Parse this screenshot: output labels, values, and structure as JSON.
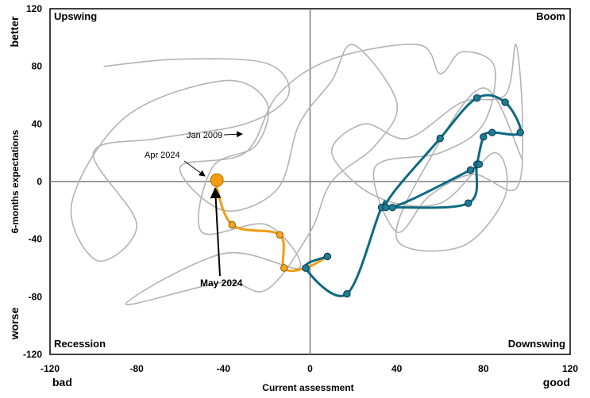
{
  "chart_data": {
    "type": "line",
    "xlabel": "Current assessment",
    "ylabel": "6-months expectations",
    "xlim": [
      -120,
      120
    ],
    "ylim": [
      -120,
      120
    ],
    "x_ticks": [
      -120,
      -80,
      -40,
      0,
      40,
      80,
      120
    ],
    "y_ticks": [
      -120,
      -80,
      -40,
      0,
      40,
      80,
      120
    ],
    "x_end_labels": {
      "left": "bad",
      "right": "good"
    },
    "y_end_labels": {
      "bottom": "worse",
      "top": "better"
    },
    "grid": false,
    "quadrant_labels": {
      "top_left": "Upswing",
      "top_right": "Boom",
      "bottom_left": "Recession",
      "bottom_right": "Downswing"
    },
    "annotations": [
      {
        "text": "Jan 2009",
        "x": -27,
        "y": 32
      },
      {
        "text": "Apr 2024",
        "x": -46,
        "y": 1
      },
      {
        "text": "May 2024",
        "x": -43,
        "y": 1
      }
    ],
    "series": [
      {
        "color": "#b3b3b3",
        "style": "history",
        "points": [
          [
            -95,
            80
          ],
          [
            -60,
            85
          ],
          [
            -20,
            82
          ],
          [
            -10,
            60
          ],
          [
            -30,
            40
          ],
          [
            -70,
            30
          ],
          [
            -100,
            20
          ],
          [
            -80,
            -30
          ],
          [
            -98,
            -55
          ],
          [
            -110,
            -15
          ],
          [
            -85,
            45
          ],
          [
            -40,
            70
          ],
          [
            -20,
            55
          ],
          [
            -25,
            25
          ],
          [
            -45,
            10
          ],
          [
            -50,
            -35
          ],
          [
            -20,
            -30
          ],
          [
            -5,
            -60
          ],
          [
            -40,
            -50
          ],
          [
            -85,
            -85
          ],
          [
            -40,
            -70
          ],
          [
            -20,
            -75
          ],
          [
            0,
            -35
          ],
          [
            10,
            0
          ],
          [
            30,
            25
          ],
          [
            40,
            55
          ],
          [
            20,
            95
          ],
          [
            10,
            70
          ],
          [
            -5,
            40
          ],
          [
            -15,
            -5
          ],
          [
            -40,
            -20
          ],
          [
            -60,
            10
          ],
          [
            -30,
            20
          ],
          [
            -15,
            60
          ],
          [
            10,
            85
          ],
          [
            50,
            95
          ],
          [
            60,
            75
          ],
          [
            70,
            90
          ],
          [
            85,
            80
          ],
          [
            80,
            40
          ],
          [
            60,
            20
          ],
          [
            30,
            10
          ],
          [
            40,
            -35
          ],
          [
            55,
            -10
          ],
          [
            75,
            5
          ],
          [
            95,
            -5
          ],
          [
            98,
            40
          ],
          [
            95,
            95
          ],
          [
            90,
            60
          ],
          [
            70,
            55
          ],
          [
            45,
            30
          ],
          [
            25,
            40
          ],
          [
            10,
            20
          ],
          [
            30,
            -10
          ],
          [
            60,
            -15
          ],
          [
            85,
            20
          ],
          [
            90,
            -10
          ],
          [
            70,
            -45
          ],
          [
            40,
            -40
          ],
          [
            55,
            15
          ],
          [
            80,
            65
          ],
          [
            98,
            15
          ]
        ]
      },
      {
        "color": "#f39c12",
        "style": "recent",
        "points": [
          [
            -43,
            1
          ],
          [
            -44,
            2
          ],
          [
            -36,
            -30
          ],
          [
            -14,
            -37
          ],
          [
            -12,
            -60
          ],
          [
            -2,
            -60
          ],
          [
            8,
            -52
          ]
        ]
      },
      {
        "color": "#0e6a82",
        "style": "earlier-2023",
        "points": [
          [
            8,
            -52
          ],
          [
            -2,
            -60
          ],
          [
            17,
            -78
          ],
          [
            33,
            -18
          ],
          [
            38,
            -18
          ],
          [
            73,
            -15
          ],
          [
            77,
            12
          ],
          [
            80,
            31
          ],
          [
            84,
            34
          ],
          [
            97,
            34
          ],
          [
            90,
            55
          ],
          [
            77,
            58
          ],
          [
            60,
            30
          ],
          [
            35,
            -18
          ],
          [
            74,
            8
          ],
          [
            78,
            12
          ]
        ]
      }
    ]
  }
}
